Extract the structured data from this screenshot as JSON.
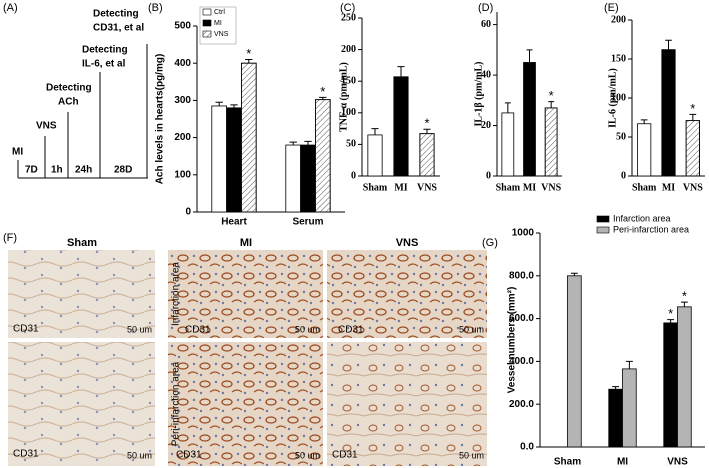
{
  "panel_labels": [
    "(A)",
    "(B)",
    "(C)",
    "(D)",
    "(E)",
    "(F)",
    "(G)"
  ],
  "timeline": {
    "events": [
      [
        "MI"
      ],
      [
        "VNS"
      ],
      [
        "Detecting",
        "ACh"
      ],
      [
        "Detecting",
        "IL-6, et al"
      ],
      [
        "Detecting",
        "CD31, et al"
      ]
    ],
    "intervals": [
      "7D",
      "1h",
      "24h",
      "28D"
    ]
  },
  "micrographs": {
    "columns": [
      "Sham",
      "MI",
      "VNS"
    ],
    "rows": [
      "Infarction area",
      "Peri-infarction area"
    ],
    "stain": "CD31",
    "scale": "50 um"
  },
  "chart_data": [
    {
      "type": "bar",
      "ylabel": "Ach levels in hearts(pg/mg)",
      "categories": [
        "Heart",
        "Serum"
      ],
      "series": [
        {
          "name": "Ctrl",
          "color": "#ffffff",
          "hatched": false,
          "values": [
            285,
            180
          ],
          "errors": [
            10,
            8
          ],
          "labels": [
            null,
            null
          ]
        },
        {
          "name": "MI",
          "color": "#000000",
          "hatched": false,
          "values": [
            280,
            180
          ],
          "errors": [
            8,
            10
          ],
          "labels": [
            null,
            null
          ]
        },
        {
          "name": "VNS",
          "color": "#ffffff",
          "hatched": true,
          "values": [
            400,
            302
          ],
          "errors": [
            10,
            6
          ],
          "labels": [
            "*",
            "*"
          ]
        }
      ],
      "ylim": [
        0,
        500
      ],
      "yticks": [
        0,
        100,
        200,
        300,
        400,
        500
      ],
      "legend": "top-left"
    },
    {
      "type": "bar",
      "ylabel": "TNF-α (pm/mL)",
      "categories": [
        "Sham",
        "MI",
        "VNS"
      ],
      "values": [
        65,
        157,
        67
      ],
      "errors": [
        10,
        16,
        7
      ],
      "labels": [
        null,
        null,
        "*"
      ],
      "colors": [
        "#ffffff",
        "#000000",
        "#ffffff"
      ],
      "hatched": [
        false,
        false,
        true
      ],
      "ylim": [
        0,
        250
      ],
      "yticks": [
        0,
        50,
        100,
        150,
        200,
        250
      ]
    },
    {
      "type": "bar",
      "ylabel": "IL-1β (pm/mL)",
      "categories": [
        "Sham",
        "MI",
        "VNS"
      ],
      "values": [
        25,
        45,
        27
      ],
      "errors": [
        4,
        5,
        2.5
      ],
      "labels": [
        null,
        null,
        "*"
      ],
      "colors": [
        "#ffffff",
        "#000000",
        "#ffffff"
      ],
      "hatched": [
        false,
        false,
        true
      ],
      "ylim": [
        0,
        65
      ],
      "yticks": [
        0,
        20,
        40,
        60
      ]
    },
    {
      "type": "bar",
      "ylabel": "IL-6 (pm/mL)",
      "categories": [
        "Sham",
        "MI",
        "VNS"
      ],
      "values": [
        67,
        162,
        71
      ],
      "errors": [
        5,
        12,
        8
      ],
      "labels": [
        null,
        null,
        "*"
      ],
      "colors": [
        "#ffffff",
        "#000000",
        "#ffffff"
      ],
      "hatched": [
        false,
        false,
        true
      ],
      "ylim": [
        0,
        200
      ],
      "yticks": [
        0,
        50,
        100,
        150,
        200
      ]
    },
    {
      "type": "bar",
      "ylabel": "Vessel numbers (mm²)",
      "categories": [
        "Sham",
        "MI",
        "VNS"
      ],
      "series": [
        {
          "name": "Infarction area",
          "color": "#000000",
          "hatched": false,
          "values": [
            null,
            270,
            580
          ],
          "errors": [
            null,
            12,
            15
          ],
          "labels": [
            null,
            null,
            "*"
          ]
        },
        {
          "name": "Peri-infarction area",
          "color": "#b4b4b4",
          "hatched": false,
          "values": [
            800,
            365,
            655
          ],
          "errors": [
            12,
            35,
            22
          ],
          "labels": [
            null,
            null,
            "*"
          ]
        }
      ],
      "ylim": [
        0,
        1000
      ],
      "yticks": [
        {
          "value": 0,
          "label": "0.0"
        },
        {
          "value": 200,
          "label": "200.0"
        },
        {
          "value": 400,
          "label": "400.0"
        },
        {
          "value": 600,
          "label": "600.0"
        },
        {
          "value": 800,
          "label": "800.0"
        },
        1000
      ],
      "legend": "top-right"
    }
  ]
}
